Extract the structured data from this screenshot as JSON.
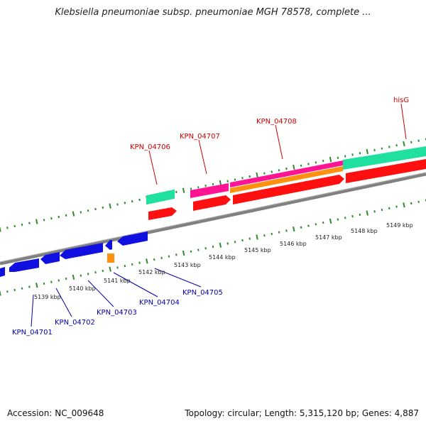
{
  "title": "Klebsiella pneumoniae subsp. pneumoniae MGH 78578, complete ...",
  "accession": "Accession: NC_009648",
  "summary": "Topology: circular; Length: 5,315,120 bp; Genes: 4,887",
  "colors": {
    "backbone": "#808080",
    "tick": "#2e8b2e",
    "gene_red": "#ff1010",
    "gene_pink": "#ff1493",
    "gene_teal": "#20e0a0",
    "gene_orange": "#ff9010",
    "gene_blue": "#1010e0",
    "label_top": "#cc0000",
    "label_bottom": "#0000aa"
  },
  "top_labels": [
    "KPN_04706",
    "KPN_04707",
    "KPN_04708",
    "hisG"
  ],
  "bottom_labels": [
    "KPN_04701",
    "KPN_04702",
    "KPN_04703",
    "KPN_04704",
    "KPN_04705"
  ],
  "kbp_labels": [
    "5139 kbp",
    "5140 kbp",
    "5141 kbp",
    "5142 kbp",
    "5143 kbp",
    "5144 kbp",
    "5145 kbp",
    "5146 kbp",
    "5147 kbp",
    "5148 kbp",
    "5149 kbp"
  ]
}
